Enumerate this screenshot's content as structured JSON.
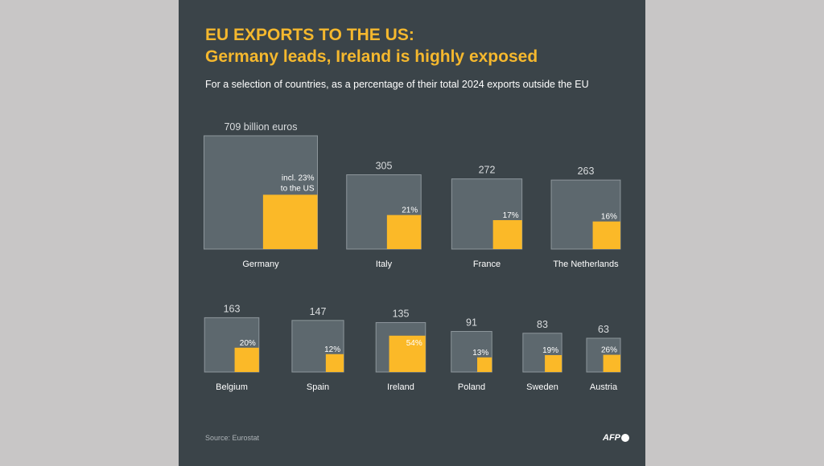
{
  "header": {
    "title_line1": "EU EXPORTS TO THE US:",
    "title_line2": "Germany leads, Ireland is highly exposed",
    "subtitle": "For a selection of countries, as a percentage of their total 2024 exports outside the EU"
  },
  "footer": {
    "source": "Source: Eurostat",
    "logo_text": "AFP"
  },
  "chart_data": {
    "type": "nested-square",
    "title": "EU EXPORTS TO THE US: Germany leads, Ireland is highly exposed",
    "subtitle": "For a selection of countries, as a percentage of their total 2024 exports outside the EU",
    "unit": "billion euros",
    "colors": {
      "total": "#5d686e",
      "total_border": "#8d969b",
      "us_share": "#fbb928"
    },
    "rows": [
      [
        {
          "country": "Germany",
          "total": 709,
          "total_label": "709 billion euros",
          "us_pct": 23,
          "pct_label_line1": "incl. 23%",
          "pct_label_line2": "to the US"
        },
        {
          "country": "Italy",
          "total": 305,
          "total_label": "305",
          "us_pct": 21,
          "pct_label_line1": "21%"
        },
        {
          "country": "France",
          "total": 272,
          "total_label": "272",
          "us_pct": 17,
          "pct_label_line1": "17%"
        },
        {
          "country": "The Netherlands",
          "total": 263,
          "total_label": "263",
          "us_pct": 16,
          "pct_label_line1": "16%"
        }
      ],
      [
        {
          "country": "Belgium",
          "total": 163,
          "total_label": "163",
          "us_pct": 20,
          "pct_label_line1": "20%"
        },
        {
          "country": "Spain",
          "total": 147,
          "total_label": "147",
          "us_pct": 12,
          "pct_label_line1": "12%"
        },
        {
          "country": "Ireland",
          "total": 135,
          "total_label": "135",
          "us_pct": 54,
          "pct_label_line1": "54%"
        },
        {
          "country": "Poland",
          "total": 91,
          "total_label": "91",
          "us_pct": 13,
          "pct_label_line1": "13%"
        },
        {
          "country": "Sweden",
          "total": 83,
          "total_label": "83",
          "us_pct": 19,
          "pct_label_line1": "19%"
        },
        {
          "country": "Austria",
          "total": 63,
          "total_label": "63",
          "us_pct": 26,
          "pct_label_line1": "26%"
        }
      ]
    ]
  }
}
